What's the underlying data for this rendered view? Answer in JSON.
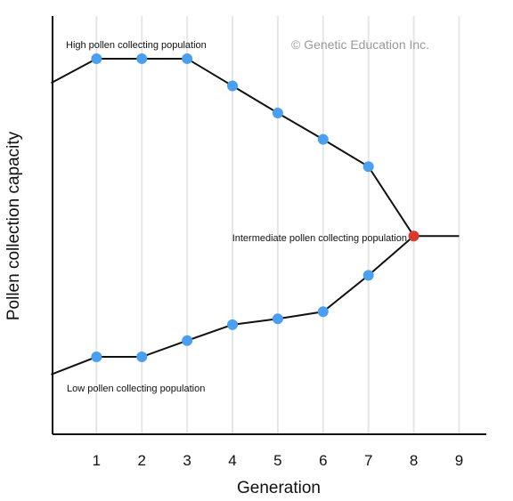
{
  "chart_data": {
    "type": "line",
    "xlabel": "Generation",
    "ylabel": "Pollen collection capacity",
    "x_ticks": [
      1,
      2,
      3,
      4,
      5,
      6,
      7,
      8,
      9
    ],
    "xlim": [
      0.03,
      9.6
    ],
    "grid": "vertical",
    "watermark": "© Genetic Education Inc.",
    "series": [
      {
        "name": "High pollen collecting population",
        "color": "#4a9ff0",
        "points": [
          {
            "x": 0,
            "y": 0.84
          },
          {
            "x": 1,
            "y": 0.898
          },
          {
            "x": 2,
            "y": 0.898
          },
          {
            "x": 3,
            "y": 0.898
          },
          {
            "x": 4,
            "y": 0.833
          },
          {
            "x": 5,
            "y": 0.768
          },
          {
            "x": 6,
            "y": 0.705
          },
          {
            "x": 7,
            "y": 0.64
          }
        ]
      },
      {
        "name": "Low pollen collecting population",
        "color": "#4a9ff0",
        "points": [
          {
            "x": 0,
            "y": 0.143
          },
          {
            "x": 1,
            "y": 0.185
          },
          {
            "x": 2,
            "y": 0.185
          },
          {
            "x": 3,
            "y": 0.224
          },
          {
            "x": 4,
            "y": 0.262
          },
          {
            "x": 5,
            "y": 0.276
          },
          {
            "x": 6,
            "y": 0.293
          },
          {
            "x": 7,
            "y": 0.38
          }
        ]
      },
      {
        "name": "Intermediate pollen collecting population",
        "color": "#d93a2b",
        "points": [
          {
            "x": 8,
            "y": 0.474
          },
          {
            "x": 9,
            "y": 0.474
          }
        ]
      }
    ],
    "annotations": [
      {
        "text": "High pollen collecting population",
        "near": "top-left"
      },
      {
        "text": "Intermediate pollen collecting population",
        "near": "generation 8"
      },
      {
        "text": "Low pollen collecting population",
        "near": "bottom-left"
      }
    ]
  }
}
